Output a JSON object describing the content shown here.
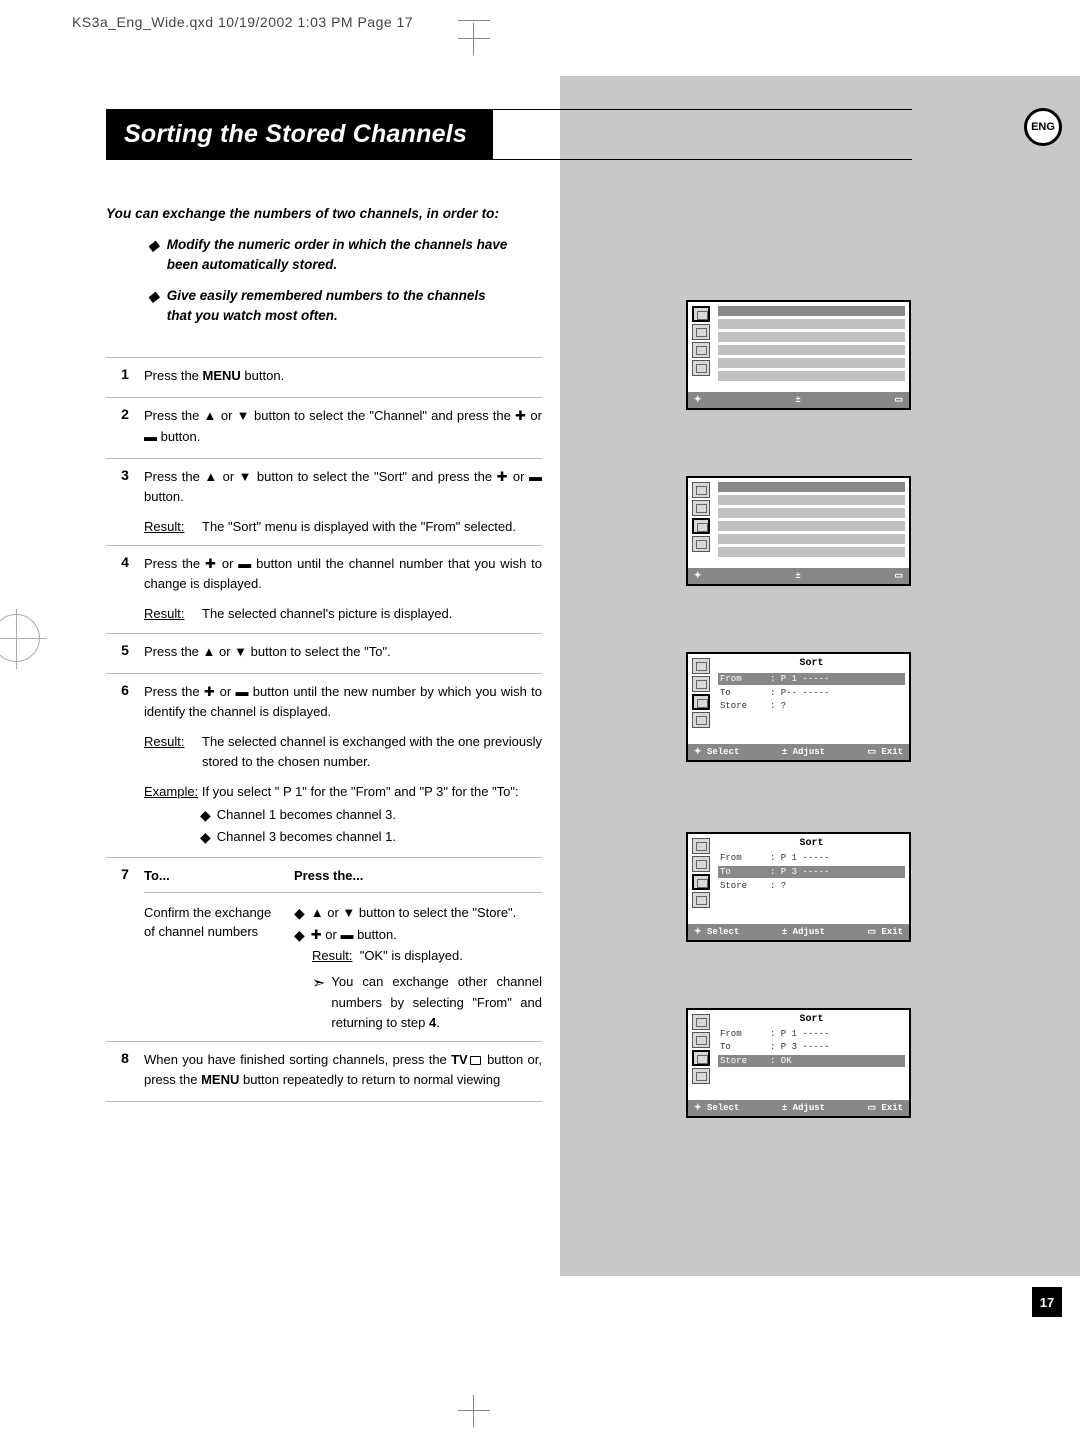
{
  "header": "KS3a_Eng_Wide.qxd  10/19/2002  1:03 PM  Page 17",
  "badge": "ENG",
  "title": "Sorting the Stored Channels",
  "intro": "You can exchange the numbers of two channels, in order to:",
  "intro_items": [
    "Modify the numeric order in which the channels have been automatically stored.",
    "Give easily remembered numbers to the channels that you watch most often."
  ],
  "steps": {
    "s1": {
      "n": "1",
      "t": "Press the <b>MENU</b> button."
    },
    "s2": {
      "n": "2",
      "t": "Press the ▲ or ▼ button to select the \"Channel\" and press the ✚ or ▬ button."
    },
    "s3": {
      "n": "3",
      "t": "Press the ▲ or ▼ button to select the \"Sort\" and press the ✚ or ▬ button.",
      "res": "The \"Sort\" menu is displayed with the \"From\" selected."
    },
    "s4": {
      "n": "4",
      "t": "Press the ✚ or ▬ button until the channel number that you wish to change is displayed.",
      "res": "The selected channel's picture is displayed."
    },
    "s5": {
      "n": "5",
      "t": "Press the ▲ or ▼ button to select the \"To\"."
    },
    "s6": {
      "n": "6",
      "t": "Press the ✚ or ▬ button until the new number by which you wish to identify the channel is displayed.",
      "res": "The selected channel is exchanged with the one previously stored to the chosen number.",
      "ex": "If you select \" P 1\" for the \"From\" and \"P 3\" for the \"To\":",
      "b1": "Channel 1 becomes channel 3.",
      "b2": "Channel 3 becomes channel 1."
    },
    "s7": {
      "n": "7",
      "h1": "To...",
      "h2": "Press the...",
      "c1a": "Confirm the exchange",
      "c1b": "of channel numbers",
      "b1": "▲ or ▼ button to select the \"Store\".",
      "b2": "✚ or ▬ button.",
      "res_lbl": "Result:",
      "res": "\"OK\" is displayed.",
      "note": "You can exchange other channel numbers by selecting \"From\" and returning to step <b>4</b>."
    },
    "s8": {
      "n": "8",
      "t": "When you have finished sorting channels, press the <b>TV</b><span class=\"tv-square\"></span> button or, press the <b>MENU</b> button repeatedly to return to normal viewing"
    }
  },
  "osd_foot": {
    "a": "✦",
    "b": "±",
    "c": "▭"
  },
  "osd_foot2": {
    "a": "✦ Select",
    "b": "± Adjust",
    "c": "▭ Exit"
  },
  "sort_menu": {
    "title": "Sort",
    "from": "From",
    "to": "To",
    "store": "Store",
    "p1": ": P 1 -----",
    "pd": ": P-- -----",
    "p3": ": P 3 -----",
    "q": ": ?",
    "ok": ": OK"
  },
  "page_num": "17",
  "result_label": "Result:",
  "example_label": "Example:"
}
